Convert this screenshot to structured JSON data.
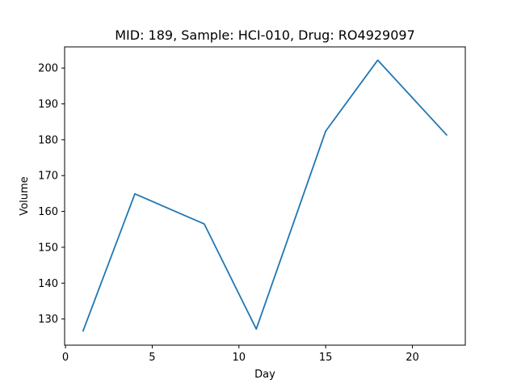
{
  "chart_data": {
    "type": "line",
    "title": "MID: 189, Sample: HCI-010, Drug: RO4929097",
    "xlabel": "Day",
    "ylabel": "Volume",
    "xlim": [
      -0.05,
      23.05
    ],
    "ylim": [
      122.7,
      205.9
    ],
    "xticks": [
      0,
      5,
      10,
      15,
      20
    ],
    "yticks": [
      130,
      140,
      150,
      160,
      170,
      180,
      190,
      200
    ],
    "grid": false,
    "series": [
      {
        "color": "#1f77b4",
        "x": [
          1,
          4,
          8,
          11,
          15,
          18,
          22
        ],
        "y": [
          126.5,
          164.9,
          156.5,
          127.2,
          182.4,
          202.2,
          181.2
        ]
      }
    ]
  }
}
